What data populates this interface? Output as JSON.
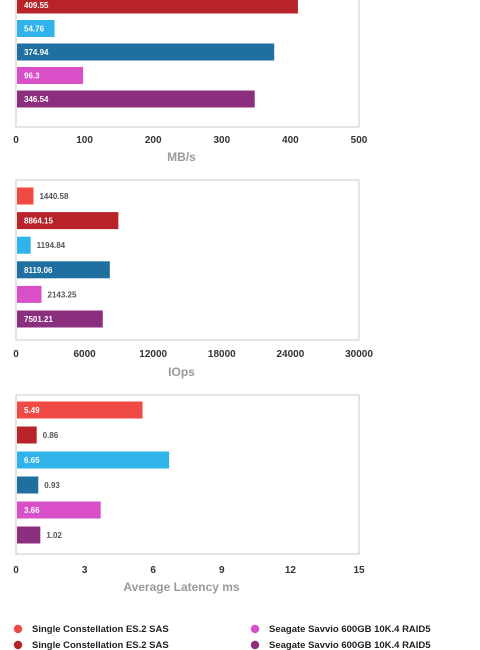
{
  "colors": {
    "series_0": "#ef4a44",
    "series_1": "#b8232a",
    "series_2": "#2fb3ea",
    "series_3": "#1f6fa0",
    "series_4": "#d94fc8",
    "series_5": "#8c2e7e"
  },
  "chart_data": [
    {
      "type": "bar",
      "orientation": "horizontal",
      "xlabel": "MB/s",
      "xlim": [
        0,
        500
      ],
      "ticks": [
        "0",
        "100",
        "200",
        "300",
        "400",
        "500"
      ],
      "bars": [
        {
          "series": 1,
          "value": 409.55,
          "label": "409.55"
        },
        {
          "series": 2,
          "value": 54.76,
          "label": "54.76"
        },
        {
          "series": 3,
          "value": 374.94,
          "label": "374.94"
        },
        {
          "series": 4,
          "value": 96.3,
          "label": "96.3"
        },
        {
          "series": 5,
          "value": 346.54,
          "label": "346.54"
        }
      ]
    },
    {
      "type": "bar",
      "orientation": "horizontal",
      "xlabel": "IOps",
      "xlim": [
        0,
        30000
      ],
      "ticks": [
        "0",
        "6000",
        "12000",
        "18000",
        "24000",
        "30000"
      ],
      "bars": [
        {
          "series": 0,
          "value": 1440.58,
          "label": "1440.58"
        },
        {
          "series": 1,
          "value": 8864.15,
          "label": "8864.15"
        },
        {
          "series": 2,
          "value": 1194.84,
          "label": "1194.84"
        },
        {
          "series": 3,
          "value": 8119.06,
          "label": "8119.06"
        },
        {
          "series": 4,
          "value": 2143.25,
          "label": "2143.25"
        },
        {
          "series": 5,
          "value": 7501.21,
          "label": "7501.21"
        }
      ]
    },
    {
      "type": "bar",
      "orientation": "horizontal",
      "xlabel": "Average Latency ms",
      "xlim": [
        0,
        15
      ],
      "ticks": [
        "0",
        "3",
        "6",
        "9",
        "12",
        "15"
      ],
      "bars": [
        {
          "series": 0,
          "value": 5.49,
          "label": "5.49"
        },
        {
          "series": 1,
          "value": 0.86,
          "label": "0.86"
        },
        {
          "series": 2,
          "value": 6.65,
          "label": "6.65"
        },
        {
          "series": 3,
          "value": 0.93,
          "label": "0.93"
        },
        {
          "series": 4,
          "value": 3.66,
          "label": "3.66"
        },
        {
          "series": 5,
          "value": 1.02,
          "label": "1.02"
        }
      ]
    }
  ],
  "legend": [
    {
      "series": 0,
      "label": "Single Constellation ES.2 SAS"
    },
    {
      "series": 1,
      "label": "Single Constellation ES.2 SAS"
    },
    {
      "series": 4,
      "label": "Seagate Savvio 600GB 10K.4 RAID5"
    },
    {
      "series": 5,
      "label": "Seagate Savvio 600GB 10K.4 RAID5"
    }
  ]
}
